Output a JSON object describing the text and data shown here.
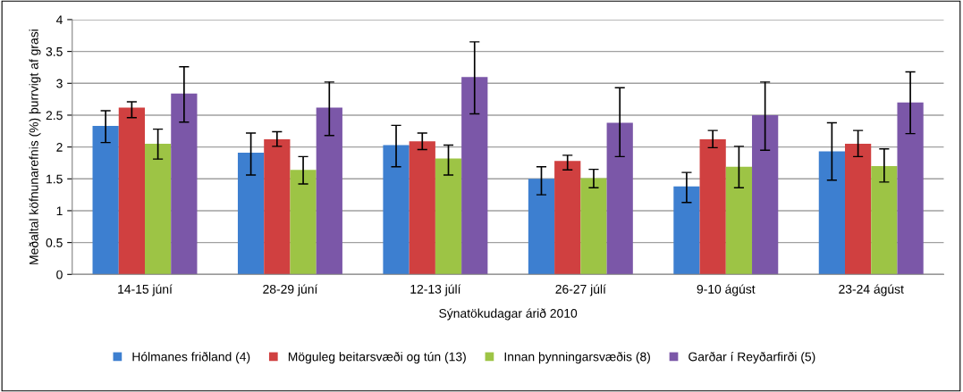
{
  "chart_data": {
    "type": "bar",
    "xlabel": "Sýnatökudagar árið 2010",
    "ylabel": "Meðaltal köfnunarefnis (%) þurrvigt af grasi",
    "categories": [
      "14-15 júní",
      "28-29 júní",
      "12-13 júlí",
      "26-27 júlí",
      "9-10 ágúst",
      "23-24 ágúst"
    ],
    "series": [
      {
        "name": "Hólmanes friðland (4)",
        "color": "#3d7fd0",
        "values": [
          2.33,
          1.91,
          2.03,
          1.5,
          1.38,
          1.93
        ],
        "errors": [
          [
            2.07,
            2.57
          ],
          [
            1.56,
            2.22
          ],
          [
            1.69,
            2.34
          ],
          [
            1.25,
            1.69
          ],
          [
            1.13,
            1.6
          ],
          [
            1.48,
            2.38
          ]
        ]
      },
      {
        "name": "Möguleg beitarsvæði og tún (13)",
        "color": "#d04040",
        "values": [
          2.62,
          2.12,
          2.09,
          1.78,
          2.12,
          2.05
        ],
        "errors": [
          [
            2.46,
            2.71
          ],
          [
            2.01,
            2.24
          ],
          [
            1.96,
            2.22
          ],
          [
            1.64,
            1.87
          ],
          [
            1.99,
            2.26
          ],
          [
            1.85,
            2.26
          ]
        ]
      },
      {
        "name": "Innan þynningarsvæðis (8)",
        "color": "#9dc445",
        "values": [
          2.05,
          1.64,
          1.82,
          1.51,
          1.69,
          1.7
        ],
        "errors": [
          [
            1.81,
            2.28
          ],
          [
            1.42,
            1.85
          ],
          [
            1.56,
            2.03
          ],
          [
            1.36,
            1.65
          ],
          [
            1.36,
            2.01
          ],
          [
            1.45,
            1.97
          ]
        ]
      },
      {
        "name": "Garðar í Reyðarfirði (5)",
        "color": "#7b57a8",
        "values": [
          2.84,
          2.62,
          3.1,
          2.38,
          2.5,
          2.7
        ],
        "errors": [
          [
            2.39,
            3.26
          ],
          [
            2.18,
            3.02
          ],
          [
            2.52,
            3.65
          ],
          [
            1.85,
            2.93
          ],
          [
            1.95,
            3.02
          ],
          [
            2.21,
            3.18
          ]
        ]
      }
    ],
    "ylim": [
      0,
      4
    ],
    "yticks": [
      0,
      0.5,
      1,
      1.5,
      2,
      2.5,
      3,
      3.5,
      4
    ],
    "grid": "y",
    "legend": "bottom"
  }
}
